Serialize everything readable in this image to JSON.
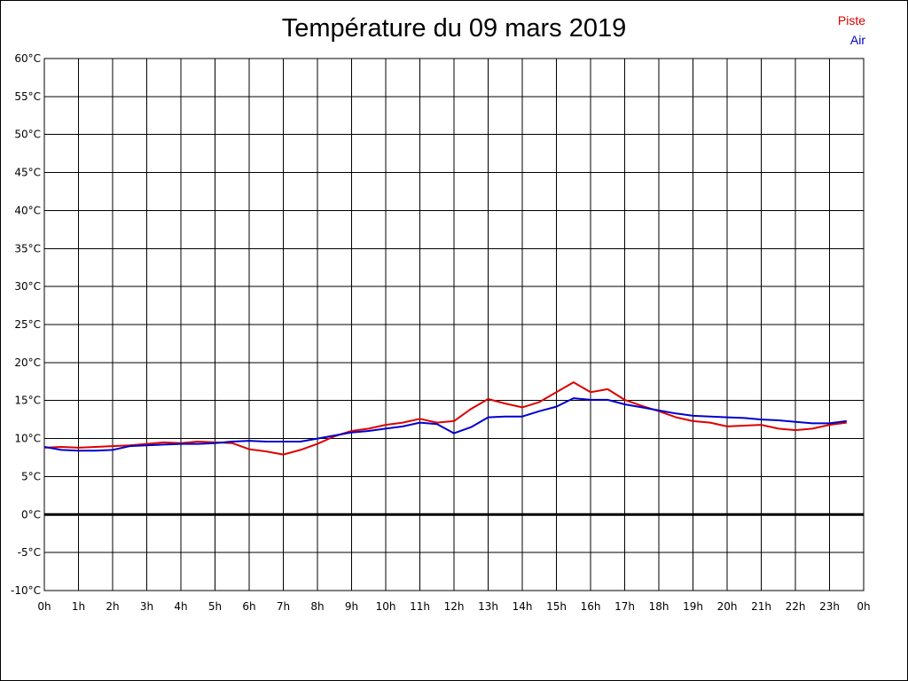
{
  "chart_data": {
    "type": "line",
    "title": "Température du 09 mars 2019",
    "xlabel": "",
    "ylabel": "",
    "x_ticks": [
      "0h",
      "1h",
      "2h",
      "3h",
      "4h",
      "5h",
      "6h",
      "7h",
      "8h",
      "9h",
      "10h",
      "11h",
      "12h",
      "13h",
      "14h",
      "15h",
      "16h",
      "17h",
      "18h",
      "19h",
      "20h",
      "21h",
      "22h",
      "23h",
      "0h"
    ],
    "y_ticks": [
      "60°C",
      "55°C",
      "50°C",
      "45°C",
      "40°C",
      "35°C",
      "30°C",
      "25°C",
      "20°C",
      "15°C",
      "10°C",
      "5°C",
      "0°C",
      "-5°C",
      "-10°C"
    ],
    "ylim": [
      -10,
      60
    ],
    "xlim": [
      0,
      24
    ],
    "grid": true,
    "legend_position": "top-right",
    "series": [
      {
        "name": "Piste",
        "color": "#dd0000",
        "x": [
          0,
          0.5,
          1,
          1.5,
          2,
          2.5,
          3,
          3.5,
          4,
          4.5,
          5,
          5.5,
          6,
          6.5,
          7,
          7.5,
          8,
          8.5,
          9,
          9.5,
          10,
          10.5,
          11,
          11.5,
          12,
          12.5,
          13,
          13.5,
          14,
          14.5,
          15,
          15.5,
          16,
          16.5,
          17,
          17.5,
          18,
          18.5,
          19,
          19.5,
          20,
          20.5,
          21,
          21.5,
          22,
          22.5,
          23,
          23.5
        ],
        "values": [
          8.8,
          8.9,
          8.8,
          8.9,
          9.0,
          9.1,
          9.3,
          9.5,
          9.4,
          9.6,
          9.5,
          9.4,
          8.6,
          8.3,
          7.9,
          8.5,
          9.3,
          10.3,
          11.0,
          11.3,
          11.8,
          12.1,
          12.6,
          12.1,
          12.3,
          13.9,
          15.2,
          14.6,
          14.1,
          14.8,
          16.1,
          17.4,
          16.1,
          16.5,
          15.1,
          14.3,
          13.6,
          12.8,
          12.3,
          12.1,
          11.6,
          11.7,
          11.8,
          11.3,
          11.1,
          11.3,
          11.8,
          12.1
        ]
      },
      {
        "name": "Air",
        "color": "#0000cc",
        "x": [
          0,
          0.5,
          1,
          1.5,
          2,
          2.5,
          3,
          3.5,
          4,
          4.5,
          5,
          5.5,
          6,
          6.5,
          7,
          7.5,
          8,
          8.5,
          9,
          9.5,
          10,
          10.5,
          11,
          11.5,
          12,
          12.5,
          13,
          13.5,
          14,
          14.5,
          15,
          15.5,
          16,
          16.5,
          17,
          17.5,
          18,
          18.5,
          19,
          19.5,
          20,
          20.5,
          21,
          21.5,
          22,
          22.5,
          23,
          23.5
        ],
        "values": [
          8.9,
          8.5,
          8.4,
          8.4,
          8.5,
          9.0,
          9.1,
          9.2,
          9.3,
          9.3,
          9.4,
          9.6,
          9.7,
          9.6,
          9.6,
          9.6,
          10.0,
          10.4,
          10.8,
          11.0,
          11.3,
          11.6,
          12.1,
          11.9,
          10.7,
          11.5,
          12.8,
          12.9,
          12.9,
          13.6,
          14.2,
          15.3,
          15.1,
          15.1,
          14.5,
          14.1,
          13.7,
          13.3,
          13.0,
          12.9,
          12.8,
          12.7,
          12.5,
          12.4,
          12.2,
          12.0,
          12.0,
          12.3
        ]
      }
    ]
  }
}
